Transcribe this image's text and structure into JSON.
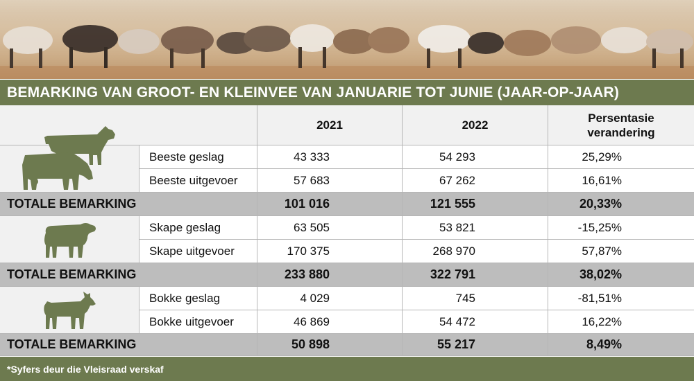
{
  "photo": {
    "description_icon": "herd-of-sheep-and-goats-photo"
  },
  "title": "BEMARKING VAN GROOT- EN KLEINVEE VAN JANUARIE TOT JUNIE (JAAR-OP-JAAR)",
  "header": {
    "col1": "2021",
    "col2": "2022",
    "col3_line1": "Persentasie",
    "col3_line2": "verandering"
  },
  "groups": [
    {
      "icon": "cattle-icon",
      "rows": [
        {
          "label": "Beeste geslag",
          "v2021": "43 333",
          "v2022": "54 293",
          "pct": "25,29%"
        },
        {
          "label": "Beeste uitgevoer",
          "v2021": "57 683",
          "v2022": "67 262",
          "pct": "16,61%"
        }
      ],
      "total": {
        "label": "TOTALE BEMARKING",
        "v2021": "101 016",
        "v2022": "121 555",
        "pct": "20,33%"
      }
    },
    {
      "icon": "sheep-icon",
      "rows": [
        {
          "label": "Skape geslag",
          "v2021": "63 505",
          "v2022": "53 821",
          "pct": "-15,25%"
        },
        {
          "label": "Skape uitgevoer",
          "v2021": "170 375",
          "v2022": "268 970",
          "pct": "57,87%"
        }
      ],
      "total": {
        "label": "TOTALE BEMARKING",
        "v2021": "233 880",
        "v2022": "322 791",
        "pct": "38,02%"
      }
    },
    {
      "icon": "goat-icon",
      "rows": [
        {
          "label": "Bokke geslag",
          "v2021": "4 029",
          "v2022": "745",
          "pct": "-81,51%"
        },
        {
          "label": "Bokke uitgevoer",
          "v2021": "46 869",
          "v2022": "54 472",
          "pct": "16,22%"
        }
      ],
      "total": {
        "label": "TOTALE BEMARKING",
        "v2021": "50 898",
        "v2022": "55 217",
        "pct": "8,49%"
      }
    }
  ],
  "footer": "*Syfers deur die Vleisraad verskaf",
  "colors": {
    "accent": "#6d7a4f",
    "icon": "#6d7a4f",
    "total_row": "#bdbdbd",
    "header_row": "#f1f1f1"
  }
}
